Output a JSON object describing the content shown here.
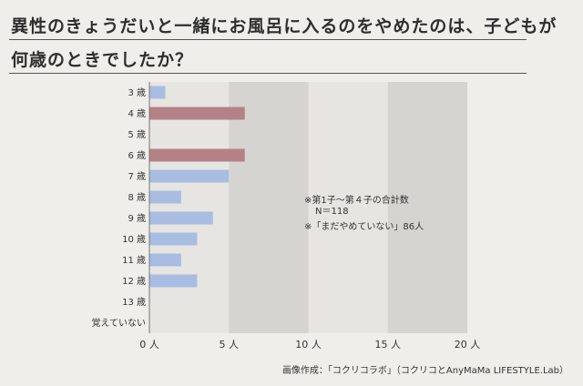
{
  "title": {
    "line1": "異性のきょうだいと一緒にお風呂に入るのをやめたのは、子どもが",
    "line2": "何歳のときでしたか？"
  },
  "notes": {
    "line1": "※第1子～第４子の合計数",
    "line2": "N＝118",
    "line3": "※「まだやめていない」86人"
  },
  "credit": "画像作成：「コクリコラボ」（コクリコとAnyMaMa LIFESTYLE.Lab）",
  "colors": {
    "highlight": "#b48286",
    "normal": "#a9bde2",
    "band_light": "#e6e5e1",
    "band_dark": "#d6d4d0"
  },
  "chart_data": {
    "type": "bar",
    "orientation": "horizontal",
    "categories": [
      "3 歳",
      "4 歳",
      "5 歳",
      "6 歳",
      "7 歳",
      "8 歳",
      "9 歳",
      "10 歳",
      "11 歳",
      "12 歳",
      "13 歳",
      "覚えていない"
    ],
    "values": [
      1,
      6,
      0,
      6,
      5,
      2,
      4,
      3,
      2,
      3,
      0,
      0
    ],
    "highlighted": [
      false,
      true,
      false,
      true,
      false,
      false,
      false,
      false,
      false,
      false,
      false,
      false
    ],
    "xlim": [
      0,
      20
    ],
    "xticks": [
      0,
      5,
      10,
      15,
      20
    ],
    "xtick_labels": [
      "0 人",
      "5 人",
      "10 人",
      "15 人",
      "20 人"
    ]
  }
}
